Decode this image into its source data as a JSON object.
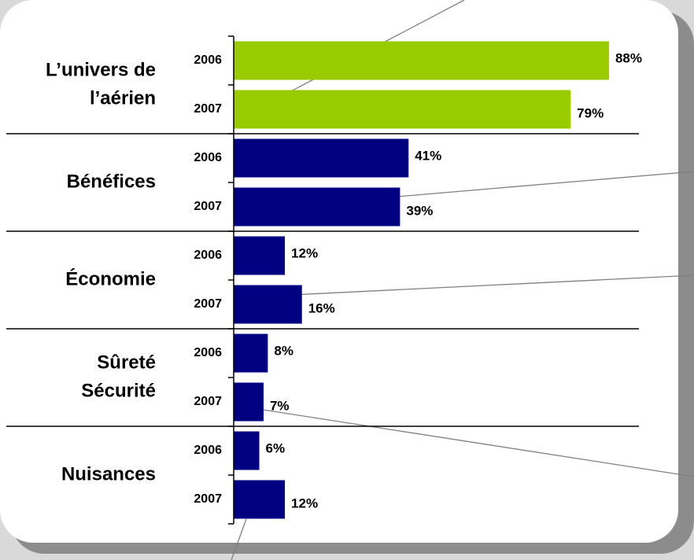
{
  "chart_data": {
    "type": "bar",
    "orientation": "horizontal",
    "categories": [
      [
        "L’univers de",
        "l’aérien"
      ],
      [
        "Bénéfices"
      ],
      [
        "Économie"
      ],
      [
        "Sûreté",
        "Sécurité"
      ],
      [
        "Nuisances"
      ]
    ],
    "colors": [
      "#99cc00",
      "#000080",
      "#000080",
      "#000080",
      "#000080"
    ],
    "series": [
      {
        "name": "2006",
        "values": [
          88,
          41,
          12,
          8,
          6
        ],
        "value_labels": [
          "88%",
          "41%",
          "12%",
          "8%",
          "6%"
        ]
      },
      {
        "name": "2007",
        "values": [
          79,
          39,
          16,
          7,
          12
        ],
        "value_labels": [
          "79%",
          "39%",
          "16%",
          "7%",
          "12%"
        ]
      }
    ],
    "xlim": [
      0,
      100
    ]
  }
}
